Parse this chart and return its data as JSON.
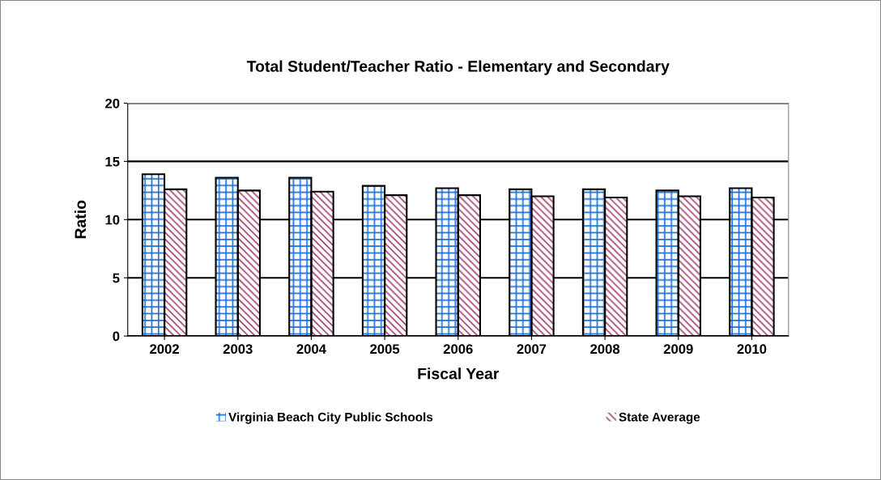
{
  "chart_data": {
    "type": "bar",
    "title": "Total Student/Teacher Ratio - Elementary and Secondary",
    "xlabel": "Fiscal Year",
    "ylabel": "Ratio",
    "categories": [
      "2002",
      "2003",
      "2004",
      "2005",
      "2006",
      "2007",
      "2008",
      "2009",
      "2010"
    ],
    "series": [
      {
        "name": "Virginia Beach City Public Schools",
        "color": "#1a6fd6",
        "values": [
          13.9,
          13.6,
          13.6,
          12.9,
          12.7,
          12.6,
          12.6,
          12.5,
          12.7
        ]
      },
      {
        "name": "State Average",
        "color": "#a3406e",
        "values": [
          12.6,
          12.5,
          12.4,
          12.1,
          12.1,
          12.0,
          11.9,
          12.0,
          11.9
        ]
      }
    ],
    "ylim": [
      0,
      20
    ],
    "yticks": [
      0,
      5,
      10,
      15,
      20
    ],
    "grid": "y",
    "legend": "bottom"
  }
}
